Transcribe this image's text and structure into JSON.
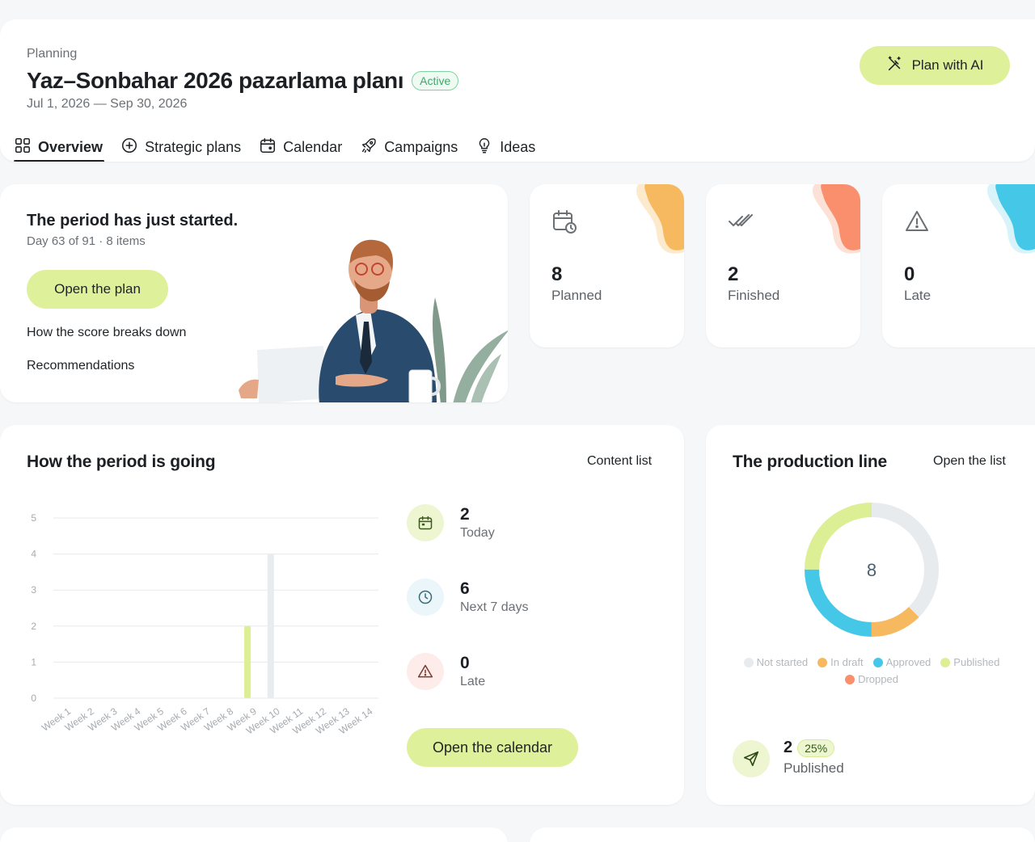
{
  "header": {
    "eyebrow": "Planning",
    "title": "Yaz–Sonbahar 2026 pazarlama planı",
    "status": "Active",
    "dates": "Jul 1, 2026 — Sep 30, 2026",
    "ai_button": "Plan with AI",
    "tabs": [
      {
        "label": "Overview",
        "icon": "grid-icon",
        "active": true
      },
      {
        "label": "Strategic plans",
        "icon": "plus-circle-icon"
      },
      {
        "label": "Calendar",
        "icon": "calendar-icon"
      },
      {
        "label": "Campaigns",
        "icon": "rocket-icon"
      },
      {
        "label": "Ideas",
        "icon": "lightbulb-icon"
      }
    ]
  },
  "hero": {
    "title": "The period has just started.",
    "subtitle": "Day 63 of 91 · 8 items",
    "button": "Open the plan",
    "link_score": "How the score breaks down",
    "link_recs": "Recommendations"
  },
  "stats": [
    {
      "value": "8",
      "label": "Planned",
      "icon": "calendar-clock-icon",
      "accent": "#f7b95f"
    },
    {
      "value": "2",
      "label": "Finished",
      "icon": "double-check-icon",
      "accent": "#fa8f6d"
    },
    {
      "value": "0",
      "label": "Late",
      "icon": "warning-icon",
      "accent": "#45c8e8"
    }
  ],
  "progress": {
    "title": "How the period is going",
    "link": "Content list",
    "metrics": [
      {
        "value": "2",
        "label": "Today",
        "icon": "calendar-icon",
        "bg": "#edf6d0"
      },
      {
        "value": "6",
        "label": "Next 7 days",
        "icon": "clock-icon",
        "bg": "#eaf6fa"
      },
      {
        "value": "0",
        "label": "Late",
        "icon": "warning-icon",
        "bg": "#fdecea"
      }
    ],
    "button": "Open the calendar"
  },
  "chart_data": {
    "type": "bar",
    "categories": [
      "Week 1",
      "Week 2",
      "Week 3",
      "Week 4",
      "Week 5",
      "Week 6",
      "Week 7",
      "Week 8",
      "Week 9",
      "Week 10",
      "Week 11",
      "Week 12",
      "Week 13",
      "Week 14"
    ],
    "series": [
      {
        "values": [
          0,
          0,
          0,
          0,
          0,
          0,
          0,
          0,
          2,
          0,
          0,
          0,
          0,
          0
        ],
        "color": "#dcef94"
      },
      {
        "values": [
          0,
          0,
          0,
          0,
          0,
          0,
          0,
          0,
          2,
          4,
          0,
          0,
          0,
          0
        ],
        "color": "#e9ecee"
      }
    ],
    "y_ticks": [
      "0",
      "1",
      "2",
      "3",
      "4",
      "5"
    ],
    "ylim": [
      0,
      5
    ],
    "grid": true
  },
  "production": {
    "title": "The production line",
    "link": "Open the list",
    "total": "8",
    "donut": [
      {
        "name": "Not started",
        "value": 3,
        "color": "#e8ebed"
      },
      {
        "name": "In draft",
        "value": 1,
        "color": "#f7b95f"
      },
      {
        "name": "Approved",
        "value": 2,
        "color": "#45c8e8"
      },
      {
        "name": "Published",
        "value": 2,
        "color": "#dcef94"
      },
      {
        "name": "Dropped",
        "value": 0,
        "color": "#fa8f6d"
      }
    ],
    "legend": [
      {
        "label": "Not started",
        "color": "#e8ebed"
      },
      {
        "label": "In draft",
        "color": "#f7b95f"
      },
      {
        "label": "Approved",
        "color": "#45c8e8"
      },
      {
        "label": "Published",
        "color": "#dcef94"
      },
      {
        "label": "Dropped",
        "color": "#fa8f6d"
      }
    ],
    "published_value": "2",
    "published_pct": "25%",
    "published_label": "Published"
  }
}
